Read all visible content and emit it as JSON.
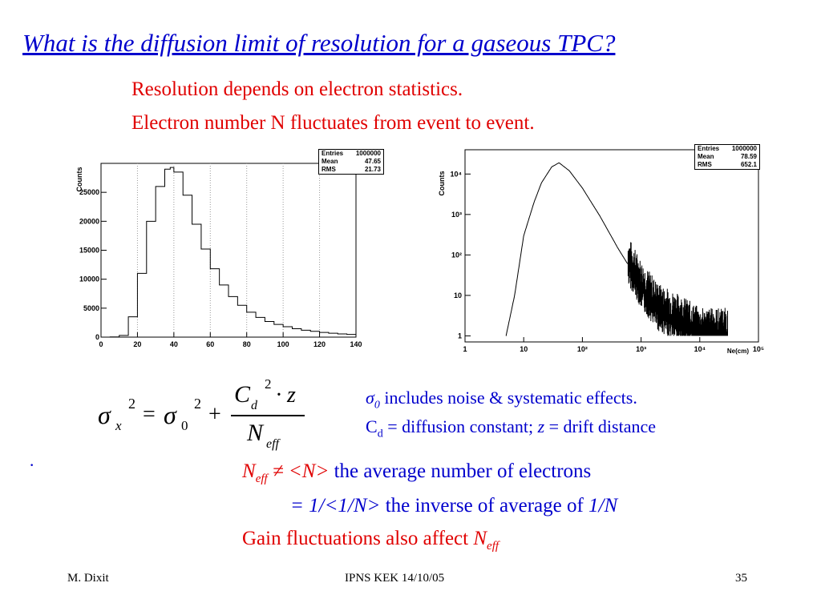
{
  "slide": {
    "title": "What is the diffusion limit of resolution for a gaseous TPC?",
    "intro_lines": [
      "Resolution depends on electron statistics.",
      "Electron number N fluctuates from event to event."
    ],
    "bullet": "·"
  },
  "chart_data": [
    {
      "type": "histogram",
      "scale": "linear",
      "ylabel": "Counts",
      "xlim": [
        0,
        140
      ],
      "ylim": [
        0,
        30000
      ],
      "x_ticks": [
        "0",
        "20",
        "40",
        "60",
        "80",
        "100",
        "120",
        "140"
      ],
      "y_ticks": [
        "0",
        "5000",
        "10000",
        "15000",
        "20000",
        "25000"
      ],
      "stats": {
        "entries_label": "Entries",
        "entries": "1000000",
        "mean_label": "Mean",
        "mean": "47.65",
        "rms_label": "RMS",
        "rms": "21.73"
      },
      "x": [
        0,
        5,
        10,
        15,
        20,
        25,
        30,
        35,
        38,
        40,
        45,
        50,
        55,
        60,
        65,
        70,
        75,
        80,
        85,
        90,
        95,
        100,
        105,
        110,
        115,
        120,
        125,
        130,
        135,
        140
      ],
      "values": [
        0,
        30,
        300,
        3500,
        11000,
        20000,
        26000,
        29000,
        29300,
        28500,
        24500,
        19500,
        15200,
        11800,
        9000,
        7000,
        5500,
        4300,
        3400,
        2700,
        2200,
        1800,
        1450,
        1200,
        1000,
        820,
        680,
        560,
        460,
        380
      ]
    },
    {
      "type": "histogram",
      "scale": "log",
      "ylabel": "Counts",
      "xlabel": "Ne(cm)",
      "stats": {
        "entries_label": "Entries",
        "entries": "1000000",
        "mean_label": "Mean",
        "mean": "78.59",
        "rms_label": "RMS",
        "rms": "652.1"
      },
      "x_ticks": [
        "1",
        "10",
        "10²",
        "10³",
        "10⁴",
        "10⁵"
      ],
      "y_ticks": [
        "1",
        "10",
        "10²",
        "10³",
        "10⁴"
      ],
      "x": [
        5,
        7,
        10,
        15,
        20,
        30,
        40,
        60,
        100,
        200,
        400,
        700,
        1000,
        2000,
        5000,
        10000,
        30000
      ],
      "values": [
        1,
        10,
        300,
        2000,
        6000,
        15000,
        19000,
        12000,
        4500,
        900,
        150,
        40,
        15,
        4,
        2,
        1,
        1
      ]
    }
  ],
  "formula": {
    "sigma": "σ",
    "sub_x": "x",
    "sup2": "2",
    "equals": "=",
    "sub_0": "0",
    "plus": "+",
    "C": "C",
    "sub_d": "d",
    "dot_z": "· z",
    "N": "N",
    "sub_eff": "eff"
  },
  "notes": {
    "sigma0": "σ",
    "sigma0_sub": "0",
    "line1_rest": " includes noise & systematic effects.",
    "line2_C": "C",
    "line2_d": "d",
    "line2_a": " = diffusion constant; ",
    "line2_z": "z",
    "line2_b": " = drift distance"
  },
  "lower": {
    "l1_N": "N",
    "l1_eff": "eff",
    "l1_neq": " ≠ <N>",
    "l1_rest": " the average number of electrons",
    "l2_expr": "= 1/<1/N>",
    "l2_rest": " the inverse of average of ",
    "l2_end": "1/N",
    "l3_text": "Gain fluctuations also affect ",
    "l3_N": "N",
    "l3_eff": "eff"
  },
  "footer": {
    "left": "M. Dixit",
    "center": "IPNS KEK 14/10/05",
    "right": "35"
  }
}
